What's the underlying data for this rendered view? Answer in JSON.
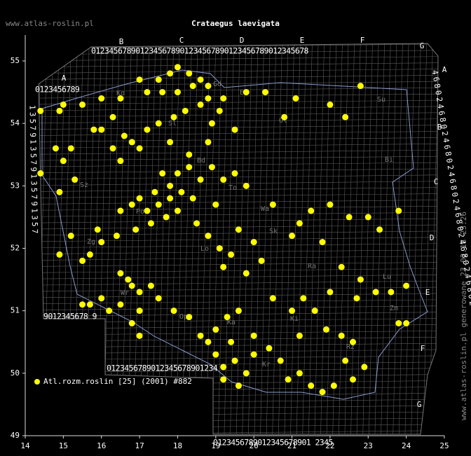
{
  "chart_data": {
    "type": "scatter",
    "site": "www.atlas-roslin.pl",
    "title": "Crataegus laevigata",
    "footer": "www.atlas-roslin.pl generowane 23.02.18 23:26",
    "xlim": [
      14,
      25
    ],
    "ylim": [
      49,
      55
    ],
    "xticks": [
      14,
      15,
      16,
      17,
      18,
      19,
      20,
      21,
      22,
      23,
      24,
      25
    ],
    "yticks": [
      49,
      50,
      51,
      52,
      53,
      54,
      55
    ],
    "grid_letters": [
      "A",
      "B",
      "C",
      "D",
      "E",
      "F",
      "G"
    ],
    "grid_letters_right": [
      "A",
      "B",
      "C",
      "D",
      "E",
      "F",
      "G"
    ],
    "grid_rows": [
      "0123456789012345678901234567890123456789012345678",
      "0123456789",
      "9012345678 9",
      "0123456789012345678901234",
      "0123456789012345678901 2345"
    ],
    "grid_columns": [
      "4680246802468024680246802468024680246802",
      "1357913579135791357"
    ],
    "cities": [
      "Ko",
      "Gd",
      "El",
      "Su",
      "Ol",
      "Sl",
      "Bi",
      "Sz",
      "Bd",
      "To",
      "Po",
      "Wa",
      "Lo",
      "Ra",
      "Lu",
      "Wr",
      "Op",
      "Ka",
      "Ki",
      "Kr",
      "Rz",
      "Zg",
      "Sk",
      "Zm"
    ],
    "series": [
      {
        "name": "Atl.rozm.roslin [25] (2001) #882",
        "color": "#ffff00",
        "x": [
          14.4,
          14.9,
          15.0,
          15.5,
          16.0,
          16.5,
          16.3,
          16.0,
          15.8,
          15.2,
          14.8,
          15.0,
          14.4,
          15.3,
          14.9,
          17.5,
          17.8,
          18.0,
          18.3,
          18.4,
          18.0,
          17.6,
          17.2,
          17.0,
          18.6,
          18.8,
          18.8,
          18.6,
          18.2,
          17.9,
          17.5,
          17.2,
          16.8,
          16.6,
          16.3,
          16.5,
          17.0,
          17.8,
          18.3,
          18.8,
          18.9,
          19.1,
          19.2,
          19.8,
          20.3,
          20.8,
          21.1,
          22.0,
          22.4,
          22.8,
          19.5,
          17.6,
          18.0,
          18.3,
          18.6,
          18.9,
          19.2,
          19.5,
          19.8,
          16.5,
          16.8,
          17.0,
          17.2,
          17.5,
          17.8,
          18.0,
          17.7,
          17.3,
          16.9,
          16.4,
          16.0,
          15.7,
          15.5,
          15.9,
          15.2,
          14.9,
          18.5,
          18.8,
          19.1,
          19.4,
          19.6,
          20.0,
          20.2,
          19.8,
          19.2,
          19.0,
          18.4,
          20.5,
          21.0,
          21.2,
          21.5,
          22.0,
          22.5,
          23.0,
          23.3,
          23.8,
          21.8,
          22.3,
          22.8,
          23.2,
          23.6,
          24.0,
          23.8,
          24.0,
          22.7,
          16.5,
          16.8,
          17.0,
          17.3,
          17.5,
          17.0,
          16.5,
          16.2,
          16.8,
          17.0,
          15.7,
          15.5,
          16.0,
          17.9,
          18.3,
          18.8,
          19.0,
          19.2,
          19.5,
          19.8,
          20.0,
          19.6,
          19.2,
          19.0,
          19.3,
          19.6,
          20.0,
          20.4,
          20.7,
          20.9,
          21.2,
          21.5,
          21.8,
          22.1,
          22.4,
          22.6,
          22.9,
          21.2,
          21.0,
          21.3,
          21.6,
          21.9,
          22.3,
          22.6,
          20.5,
          22.0,
          17.8,
          18.1,
          17.4,
          16.7,
          19.4,
          18.6
        ],
        "y": [
          54.2,
          54.2,
          54.3,
          54.3,
          54.4,
          54.4,
          54.1,
          53.9,
          53.9,
          53.6,
          53.6,
          53.4,
          53.2,
          53.1,
          52.9,
          54.7,
          54.8,
          54.9,
          54.8,
          54.6,
          54.5,
          54.5,
          54.5,
          54.7,
          54.7,
          54.6,
          54.4,
          54.3,
          54.2,
          54.1,
          54.0,
          53.9,
          53.7,
          53.8,
          53.6,
          53.4,
          53.6,
          53.7,
          53.5,
          53.7,
          54.0,
          54.2,
          54.4,
          54.5,
          54.5,
          54.1,
          54.4,
          54.3,
          54.1,
          54.6,
          53.9,
          53.2,
          53.2,
          53.3,
          53.1,
          53.3,
          53.1,
          53.2,
          53.0,
          52.6,
          52.7,
          52.8,
          52.6,
          52.7,
          52.8,
          52.6,
          52.5,
          52.4,
          52.3,
          52.2,
          52.1,
          51.9,
          51.8,
          52.3,
          52.2,
          51.9,
          52.4,
          52.2,
          52.0,
          51.9,
          52.3,
          52.1,
          51.8,
          51.6,
          51.7,
          52.7,
          52.8,
          52.7,
          52.2,
          52.4,
          52.6,
          52.7,
          52.5,
          52.5,
          52.3,
          52.6,
          52.1,
          51.7,
          51.5,
          51.3,
          51.3,
          51.4,
          50.8,
          50.8,
          51.2,
          51.6,
          51.4,
          51.3,
          51.4,
          51.2,
          51.0,
          51.1,
          51.0,
          50.8,
          50.6,
          51.1,
          51.1,
          51.2,
          51.0,
          50.9,
          50.5,
          50.3,
          50.1,
          50.2,
          50.0,
          50.3,
          49.8,
          49.9,
          50.7,
          50.9,
          51.0,
          50.6,
          50.4,
          50.2,
          49.9,
          50.0,
          49.8,
          49.7,
          49.8,
          50.2,
          49.9,
          50.1,
          50.6,
          51.0,
          51.2,
          51.0,
          50.7,
          50.6,
          50.5,
          51.2,
          51.3,
          53.0,
          52.9,
          52.9,
          51.5,
          50.5,
          50.6
        ]
      }
    ]
  }
}
